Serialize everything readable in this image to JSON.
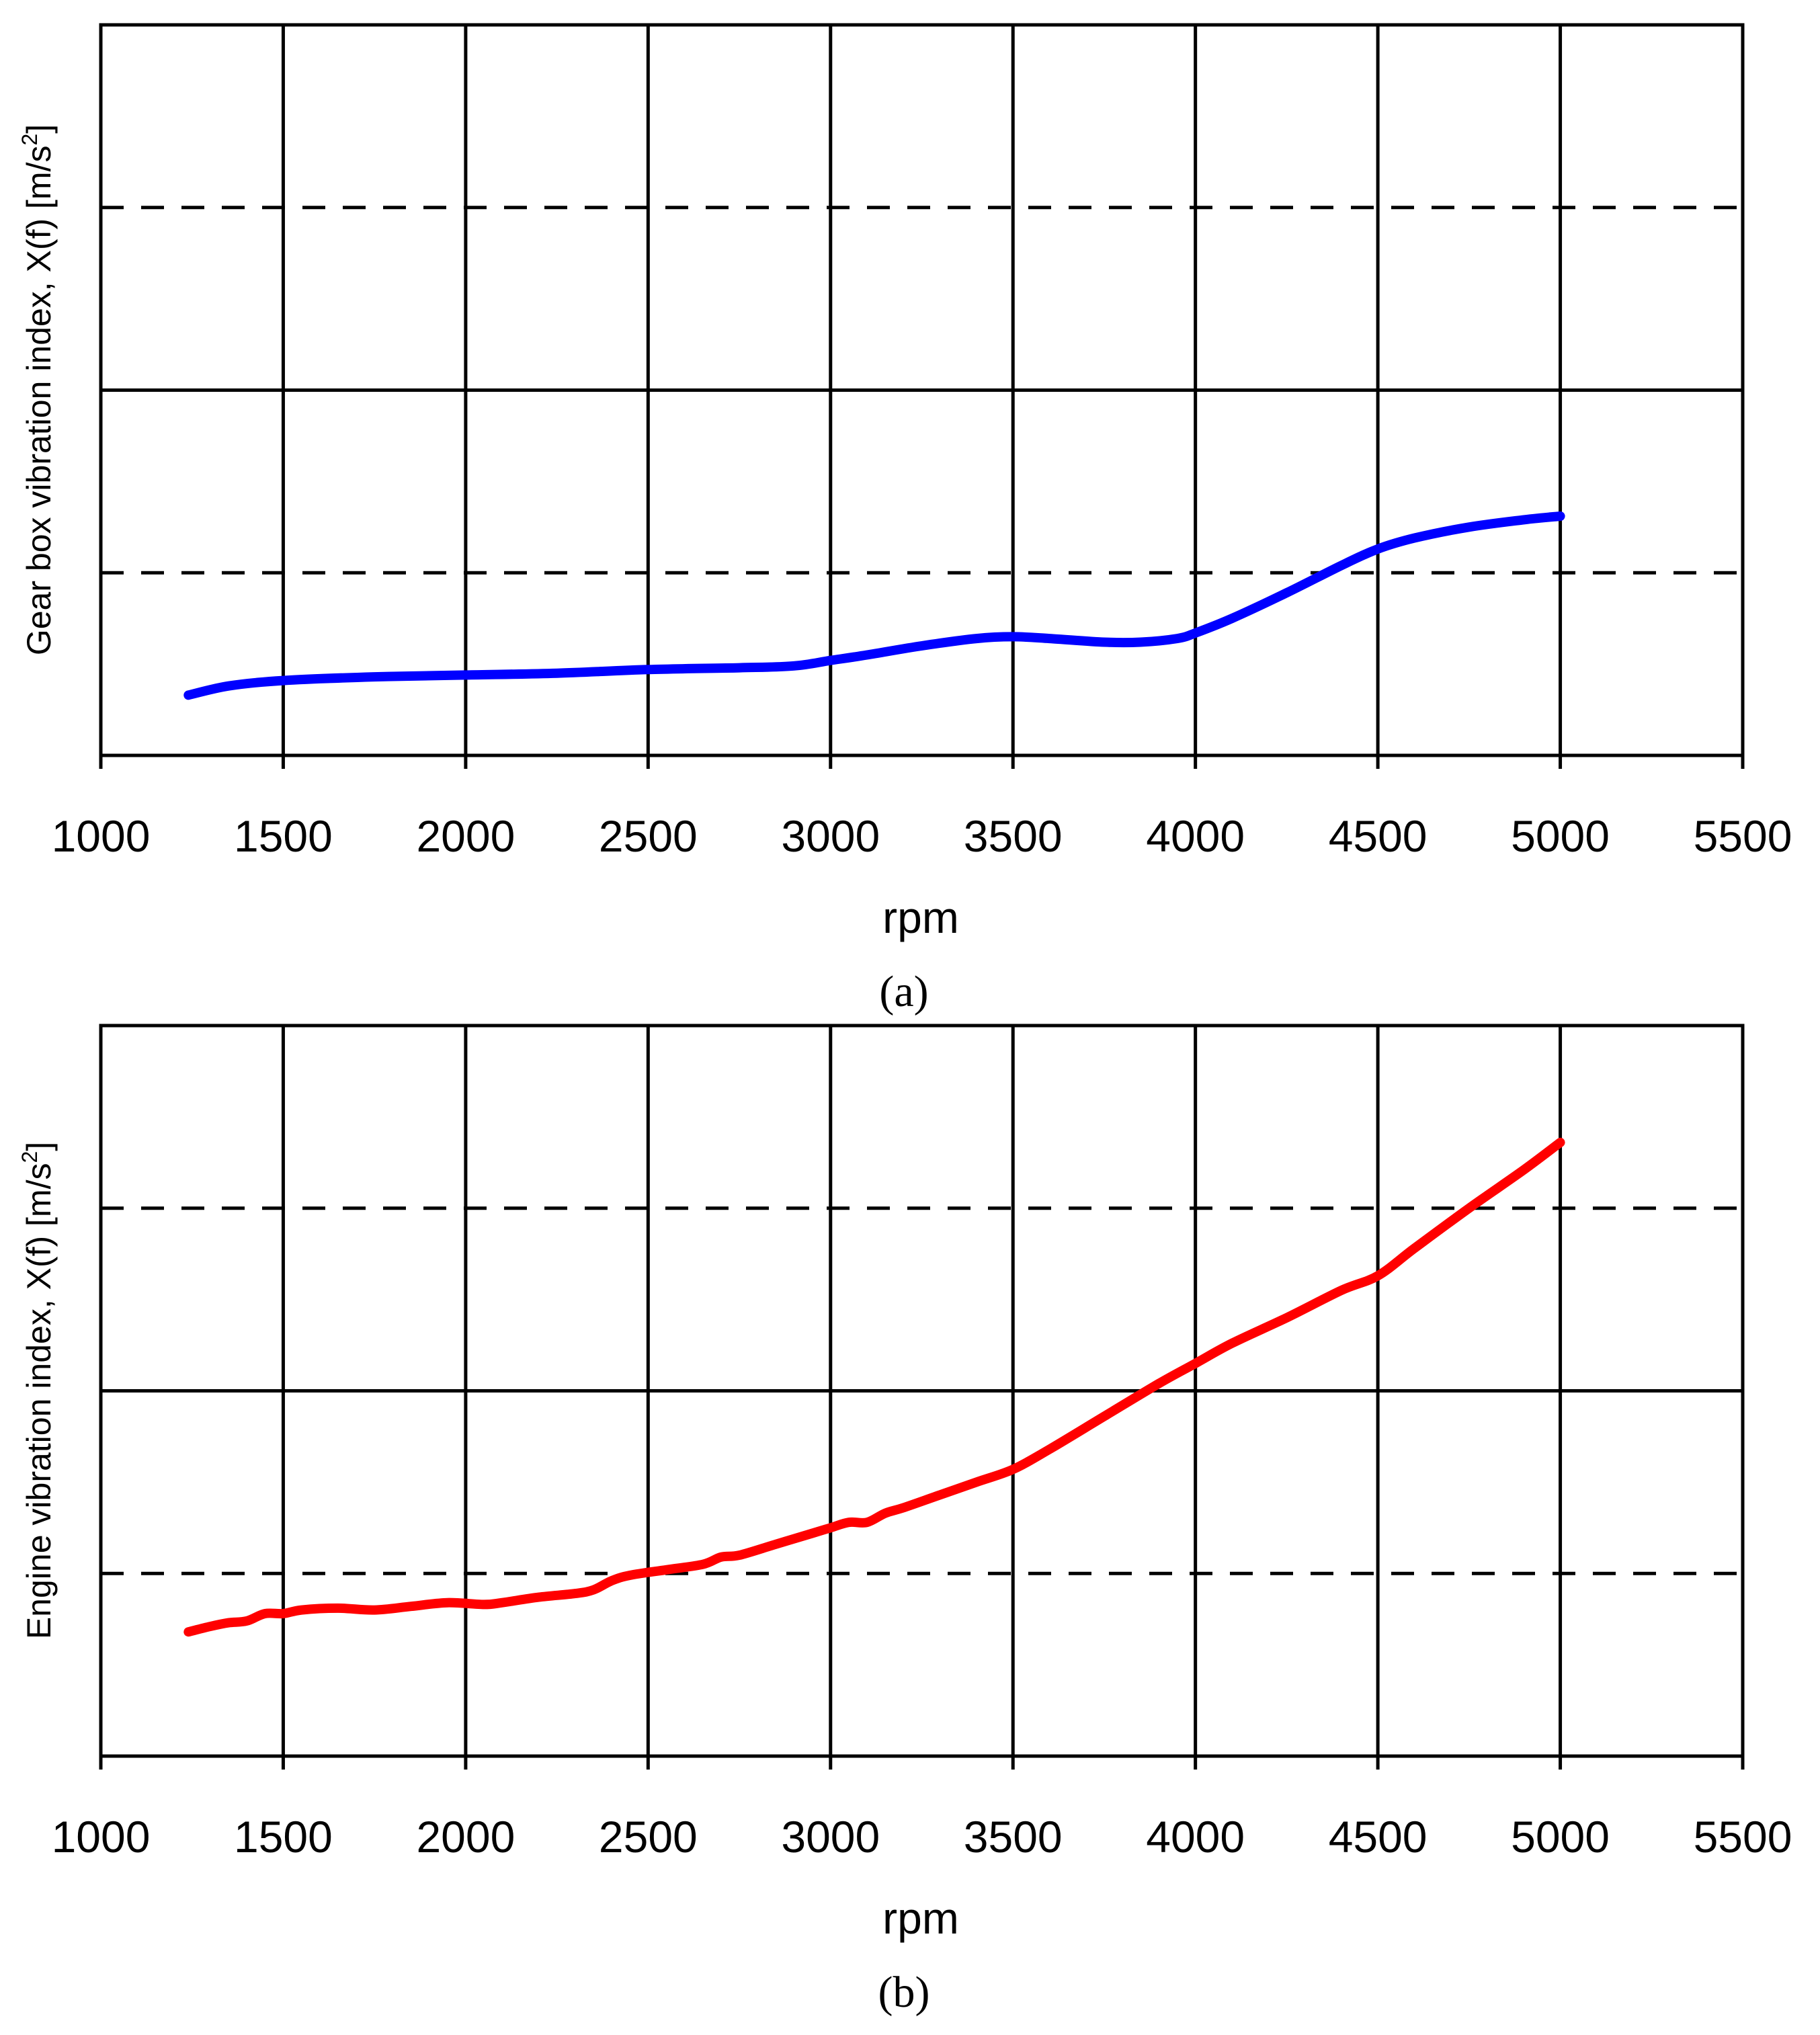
{
  "chart_data": [
    {
      "type": "line",
      "panel": "a",
      "caption": "(a)",
      "xlabel": "rpm",
      "ylabel": "Gear box vibration index, X(f) [m/s",
      "ylabel_sup": "2",
      "ylabel_end": "]",
      "xlim": [
        1000,
        5500
      ],
      "xticks": [
        "1000",
        "1500",
        "2000",
        "2500",
        "3000",
        "3500",
        "4000",
        "4500",
        "5000",
        "5500"
      ],
      "ylim": [
        0,
        4
      ],
      "yticks": [],
      "grid_major_y": [
        2
      ],
      "grid_dashed_y": [
        1,
        3
      ],
      "line_color": "#0000ff",
      "series": [
        {
          "name": "Gear box",
          "x": [
            1240,
            1350,
            1500,
            1750,
            2000,
            2250,
            2500,
            2750,
            2900,
            3000,
            3100,
            3250,
            3400,
            3500,
            3600,
            3750,
            3850,
            3950,
            4000,
            4100,
            4250,
            4400,
            4500,
            4600,
            4750,
            4900,
            5000
          ],
          "y": [
            0.33,
            0.38,
            0.41,
            0.43,
            0.44,
            0.45,
            0.47,
            0.48,
            0.49,
            0.52,
            0.55,
            0.6,
            0.64,
            0.65,
            0.64,
            0.62,
            0.62,
            0.64,
            0.67,
            0.75,
            0.89,
            1.04,
            1.13,
            1.19,
            1.25,
            1.29,
            1.31
          ]
        }
      ]
    },
    {
      "type": "line",
      "panel": "b",
      "caption": "(b)",
      "xlabel": "rpm",
      "ylabel": "Engine vibration index, X(f) [m/s",
      "ylabel_sup": "2",
      "ylabel_end": "]",
      "xlim": [
        1000,
        5500
      ],
      "xticks": [
        "1000",
        "1500",
        "2000",
        "2500",
        "3000",
        "3500",
        "4000",
        "4500",
        "5000",
        "5500"
      ],
      "ylim": [
        0,
        4
      ],
      "yticks": [],
      "grid_major_y": [
        2
      ],
      "grid_dashed_y": [
        1,
        3
      ],
      "line_color": "#ff0000",
      "series": [
        {
          "name": "Engine",
          "x": [
            1240,
            1300,
            1350,
            1400,
            1450,
            1500,
            1550,
            1650,
            1750,
            1850,
            1950,
            2050,
            2100,
            2200,
            2300,
            2350,
            2400,
            2450,
            2550,
            2650,
            2700,
            2750,
            2850,
            2950,
            3000,
            3050,
            3100,
            3150,
            3200,
            3300,
            3400,
            3500,
            3600,
            3750,
            3900,
            4000,
            4100,
            4250,
            4400,
            4500,
            4600,
            4750,
            4900,
            5000
          ],
          "y": [
            0.68,
            0.71,
            0.73,
            0.74,
            0.78,
            0.78,
            0.8,
            0.81,
            0.8,
            0.82,
            0.84,
            0.83,
            0.84,
            0.87,
            0.89,
            0.91,
            0.96,
            0.99,
            1.02,
            1.05,
            1.09,
            1.1,
            1.16,
            1.22,
            1.25,
            1.28,
            1.28,
            1.33,
            1.36,
            1.43,
            1.5,
            1.57,
            1.68,
            1.86,
            2.04,
            2.15,
            2.26,
            2.4,
            2.55,
            2.63,
            2.78,
            3.0,
            3.21,
            3.36
          ]
        }
      ]
    }
  ]
}
